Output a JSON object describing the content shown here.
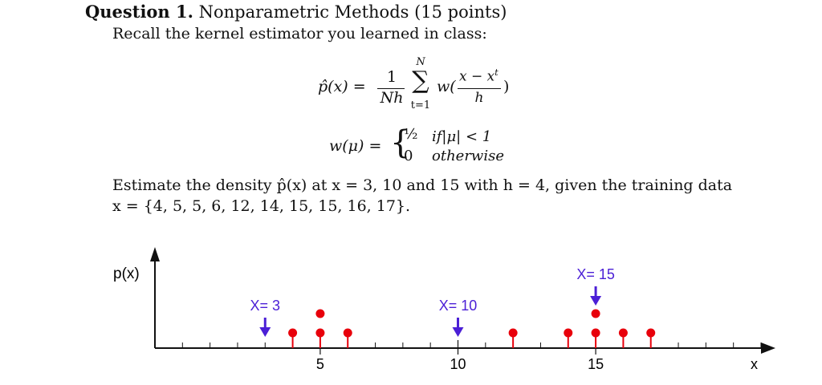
{
  "question": {
    "label": "Question 1.",
    "title": "Nonparametric Methods (15 points)",
    "intro": "Recall the kernel estimator you learned in class:"
  },
  "formula": {
    "lhs": "p̂(x) =",
    "one": "1",
    "nh": "Nh",
    "sum_top": "N",
    "sum_sym": "∑",
    "sum_bottom": "t=1",
    "w_open": "w(",
    "num_a": "x − x",
    "num_sup": "t",
    "h": "h",
    "w_close": ")",
    "w_lhs": "w(μ) =",
    "brace": "{",
    "case1_val": "½",
    "case1_cond": "if|μ| < 1",
    "case2_val": "0",
    "case2_cond": "otherwise"
  },
  "task": {
    "line1": "Estimate the density p̂(x) at x = 3, 10 and 15 with h = 4, given the training data",
    "line2": "x = {4, 5, 5, 6, 12, 14, 15, 15, 16, 17}."
  },
  "figure": {
    "y_axis_label": "p(x)",
    "x_axis_label": "x",
    "tick_labels": [
      {
        "value": 5,
        "text": "5"
      },
      {
        "value": 10,
        "text": "10"
      },
      {
        "value": 15,
        "text": "15"
      }
    ],
    "query_labels": [
      {
        "value": 3,
        "text": "X= 3"
      },
      {
        "value": 10,
        "text": "X= 10"
      },
      {
        "value": 15,
        "text": "X= 15"
      }
    ],
    "data_points": [
      4,
      5,
      5,
      6,
      12,
      14,
      15,
      15,
      16,
      17
    ],
    "x_range": [
      -1,
      21
    ],
    "colors": {
      "points": "#e8000b",
      "arrows": "#4b1fd6",
      "axis": "#111111"
    }
  }
}
